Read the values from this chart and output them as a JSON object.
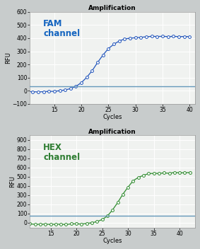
{
  "fam": {
    "title": "Amplification",
    "label": "FAM\nchannel",
    "label_color": "#1565C0",
    "line_color": "#2255BB",
    "marker_facecolor": "white",
    "marker_edgecolor": "#2255BB",
    "threshold_color": "#6699BB",
    "threshold_y": 32,
    "xlim": [
      10.5,
      41
    ],
    "ylim": [
      -100,
      600
    ],
    "xticks": [
      15,
      20,
      25,
      30,
      35,
      40
    ],
    "yticks": [
      -100,
      0,
      100,
      200,
      300,
      400,
      500,
      600
    ],
    "xlabel": "Cycles",
    "ylabel": "RFU",
    "sigmoid_baseline": -8,
    "sigmoid_plateau": 420,
    "sigmoid_midpoint": 22.8,
    "sigmoid_steepness": 0.58
  },
  "hex": {
    "title": "Amplification",
    "label": "HEX\nchannel",
    "label_color": "#2E7D32",
    "line_color": "#2E8B2E",
    "marker_facecolor": "white",
    "marker_edgecolor": "#2E8B2E",
    "threshold_color": "#6699BB",
    "threshold_y": 75,
    "xlim": [
      11,
      43
    ],
    "ylim": [
      -50,
      950
    ],
    "xticks": [
      15,
      20,
      25,
      30,
      35,
      40
    ],
    "yticks": [
      0,
      100,
      200,
      300,
      400,
      500,
      600,
      700,
      800,
      900
    ],
    "xlabel": "Cycles",
    "ylabel": "RFU",
    "sigmoid_baseline": -15,
    "sigmoid_plateau": 560,
    "sigmoid_midpoint": 28.5,
    "sigmoid_steepness": 0.65
  },
  "fig_bg": "#C8CCCC",
  "plot_bg": "#F0F2F0",
  "grid_color": "#FFFFFF",
  "title_fontsize": 6.5,
  "tick_fontsize": 5.5,
  "axis_label_fontsize": 6,
  "channel_label_fontsize": 8.5
}
